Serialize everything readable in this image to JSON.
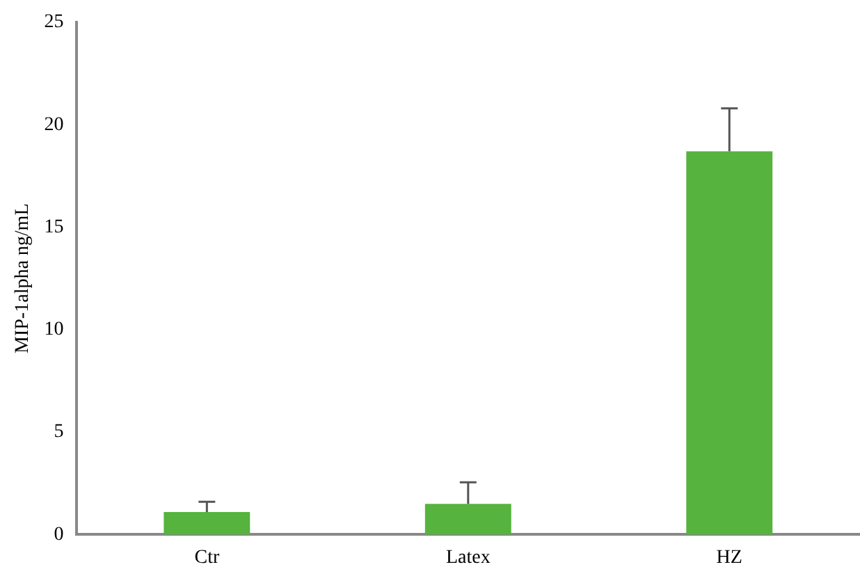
{
  "chart_data": {
    "type": "bar",
    "ylabel": "MIP-1alpha ng/mL",
    "categories": [
      "Ctr",
      "Latex",
      "HZ"
    ],
    "values": [
      1.1,
      1.5,
      18.7
    ],
    "color": "#55b33e",
    "errors": [
      [
        1.1,
        1.6
      ],
      [
        1.5,
        2.55
      ],
      [
        18.7,
        20.8
      ]
    ],
    "ylim": [
      0,
      25
    ],
    "yticks": [
      0,
      5,
      10,
      15,
      20,
      25
    ],
    "grid": false,
    "legend": false
  }
}
